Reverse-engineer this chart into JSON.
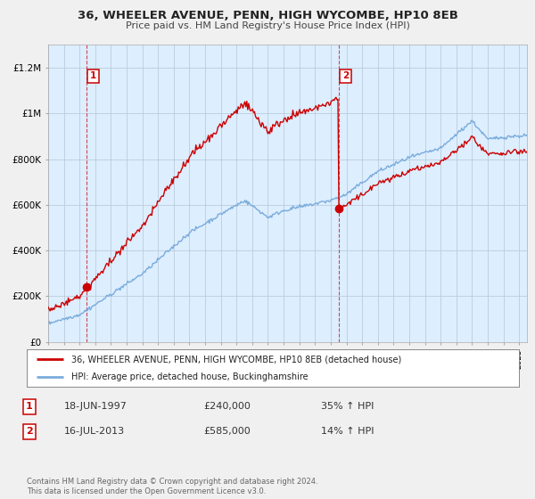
{
  "title": "36, WHEELER AVENUE, PENN, HIGH WYCOMBE, HP10 8EB",
  "subtitle": "Price paid vs. HM Land Registry's House Price Index (HPI)",
  "property_label": "36, WHEELER AVENUE, PENN, HIGH WYCOMBE, HP10 8EB (detached house)",
  "hpi_label": "HPI: Average price, detached house, Buckinghamshire",
  "sale1_date": "18-JUN-1997",
  "sale1_price": "£240,000",
  "sale1_hpi": "35% ↑ HPI",
  "sale2_date": "16-JUL-2013",
  "sale2_price": "£585,000",
  "sale2_hpi": "14% ↑ HPI",
  "footnote": "Contains HM Land Registry data © Crown copyright and database right 2024.\nThis data is licensed under the Open Government Licence v3.0.",
  "property_color": "#cc0000",
  "hpi_color": "#7aacdc",
  "sale_marker_color": "#cc0000",
  "ylim": [
    0,
    1300000
  ],
  "yticks": [
    0,
    200000,
    400000,
    600000,
    800000,
    1000000,
    1200000
  ],
  "ytick_labels": [
    "£0",
    "£200K",
    "£400K",
    "£600K",
    "£800K",
    "£1M",
    "£1.2M"
  ],
  "background_color": "#f0f0f0",
  "plot_bg_color": "#ddeeff",
  "grid_color": "#bbccdd",
  "sale1_year": 1997.47,
  "sale1_value": 240000,
  "sale2_year": 2013.54,
  "sale2_value": 585000,
  "xmin": 1995,
  "xmax": 2025.5,
  "n_points": 500
}
